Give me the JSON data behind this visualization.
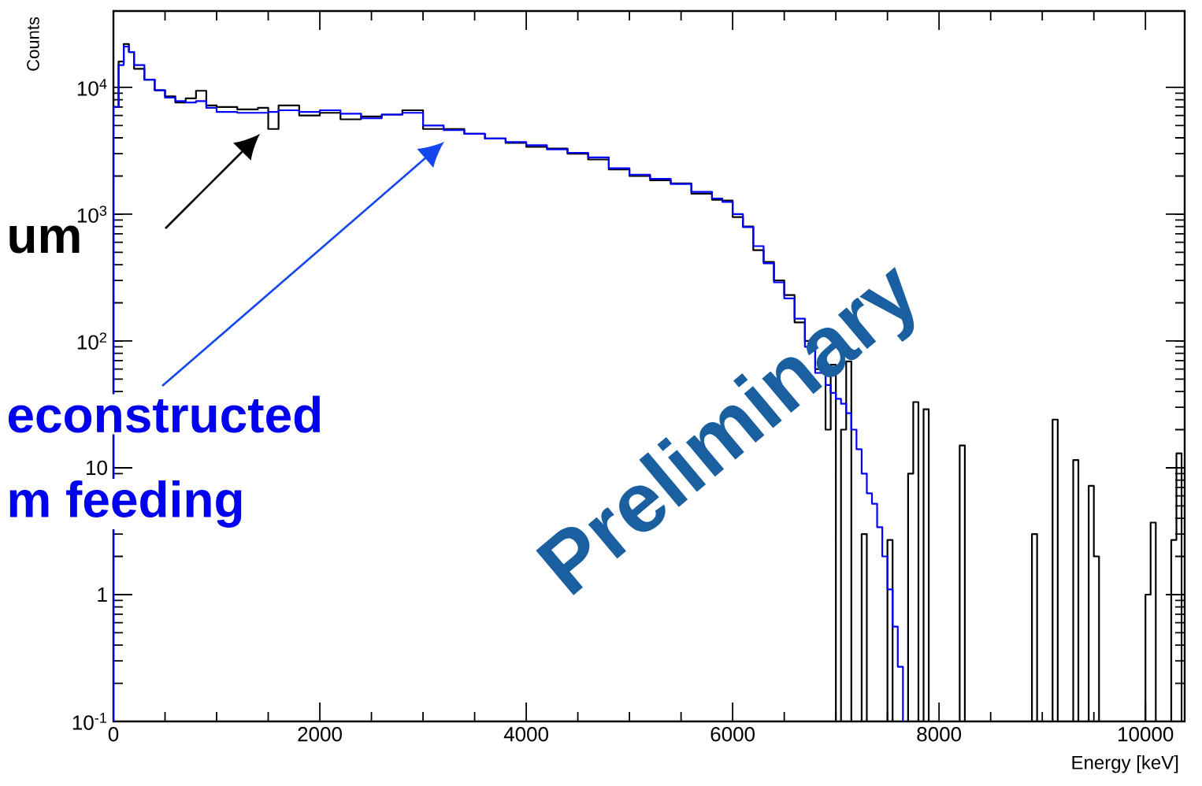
{
  "chart_data": {
    "type": "histogram",
    "xlabel": "Energy [keV]",
    "ylabel": "Counts",
    "log": "y",
    "xlim": [
      0,
      10380
    ],
    "ylim": [
      0.1,
      40000
    ],
    "xticks": [
      0,
      2000,
      4000,
      6000,
      8000,
      10000
    ],
    "yticks": [
      {
        "value": 0.1,
        "label": "10$^{-1}$"
      },
      {
        "value": 1,
        "label": "1"
      },
      {
        "value": 10,
        "label": "10"
      },
      {
        "value": 100,
        "label": "10$^{2}$"
      },
      {
        "value": 1000,
        "label": "10$^{3}$"
      },
      {
        "value": 10000,
        "label": "10$^{4}$"
      }
    ],
    "bins": [
      0,
      50,
      100,
      150,
      200,
      300,
      400,
      500,
      600,
      700,
      800,
      900,
      1000,
      1200,
      1400,
      1500,
      1600,
      1800,
      2000,
      2200,
      2400,
      2600,
      2800,
      3000,
      3200,
      3400,
      3600,
      3800,
      4000,
      4200,
      4400,
      4600,
      4800,
      5000,
      5200,
      5400,
      5600,
      5800,
      5900,
      6000,
      6100,
      6200,
      6300,
      6400,
      6500,
      6600,
      6700,
      6800,
      6900,
      6950,
      7000,
      7050,
      7100,
      7150,
      7200,
      7250,
      7300,
      7350,
      7400,
      7450,
      7500,
      7550,
      7600,
      7650,
      7700,
      7750,
      7800,
      7850,
      7900,
      7950,
      8000,
      8050,
      8100,
      8150,
      8200,
      8250,
      8300,
      8350,
      8400,
      8450,
      8500,
      8550,
      8600,
      8650,
      8700,
      8750,
      8800,
      8850,
      8900,
      8950,
      9000,
      9050,
      9100,
      9150,
      9200,
      9250,
      9300,
      9350,
      9400,
      9450,
      9500,
      9550,
      9600,
      9650,
      9700,
      9750,
      9800,
      9850,
      9900,
      9950,
      10000,
      10050,
      10100,
      10150,
      10200,
      10250,
      10300,
      10350
    ],
    "series": [
      {
        "color": "#000000",
        "values": [
          7000,
          16000,
          22000,
          19000,
          14000,
          11500,
          9500,
          8500,
          7600,
          8200,
          9400,
          7200,
          7000,
          6700,
          6900,
          4700,
          7200,
          6000,
          6300,
          5600,
          5900,
          6100,
          6600,
          4700,
          4700,
          4300,
          3950,
          3650,
          3400,
          3300,
          3000,
          2700,
          2250,
          2000,
          1850,
          1750,
          1450,
          1300,
          1280,
          950,
          800,
          520,
          420,
          300,
          230,
          140,
          100,
          60,
          20,
          65,
          null,
          20,
          69,
          null,
          null,
          3,
          null,
          null,
          null,
          null,
          2.7,
          null,
          null,
          null,
          9,
          33,
          null,
          29,
          null,
          null,
          null,
          null,
          null,
          null,
          15,
          null,
          null,
          null,
          null,
          null,
          null,
          null,
          null,
          null,
          null,
          null,
          null,
          null,
          3,
          null,
          null,
          null,
          24,
          null,
          null,
          null,
          11.5,
          null,
          null,
          7.2,
          2,
          null,
          null,
          null,
          null,
          null,
          null,
          null,
          null,
          null,
          1,
          3.7,
          null,
          null,
          null,
          2.7,
          13
        ]
      },
      {
        "color": "#0000ff",
        "bins": [
          0,
          50,
          100,
          150,
          200,
          300,
          400,
          500,
          600,
          700,
          800,
          900,
          1000,
          1200,
          1400,
          1500,
          1600,
          1800,
          2000,
          2200,
          2400,
          2600,
          2800,
          3000,
          3200,
          3400,
          3600,
          3800,
          4000,
          4200,
          4400,
          4600,
          4800,
          5000,
          5200,
          5400,
          5600,
          5800,
          5900,
          6000,
          6100,
          6200,
          6300,
          6400,
          6500,
          6600,
          6700,
          6800,
          6900,
          6950,
          7000,
          7050,
          7100,
          7150,
          7200,
          7250,
          7300,
          7350,
          7400,
          7450,
          7500,
          7550,
          7600,
          7650
        ],
        "values": [
          7000,
          15000,
          21000,
          19000,
          15000,
          11500,
          9500,
          8300,
          7800,
          7600,
          7800,
          6900,
          6400,
          6300,
          6300,
          6400,
          6600,
          6400,
          6600,
          6200,
          5700,
          6100,
          6300,
          5000,
          4600,
          4300,
          3950,
          3700,
          3500,
          3250,
          3050,
          2800,
          2300,
          2050,
          1900,
          1730,
          1500,
          1330,
          1250,
          1000,
          790,
          560,
          410,
          290,
          217,
          150,
          90,
          56,
          45,
          39,
          35,
          32,
          27,
          20,
          14,
          9,
          6.3,
          5.2,
          3.4,
          2,
          1.1,
          0.56,
          0.27
        ]
      }
    ],
    "annotations": [
      "um",
      "econstructed",
      "m feeding",
      "Preliminary"
    ]
  }
}
